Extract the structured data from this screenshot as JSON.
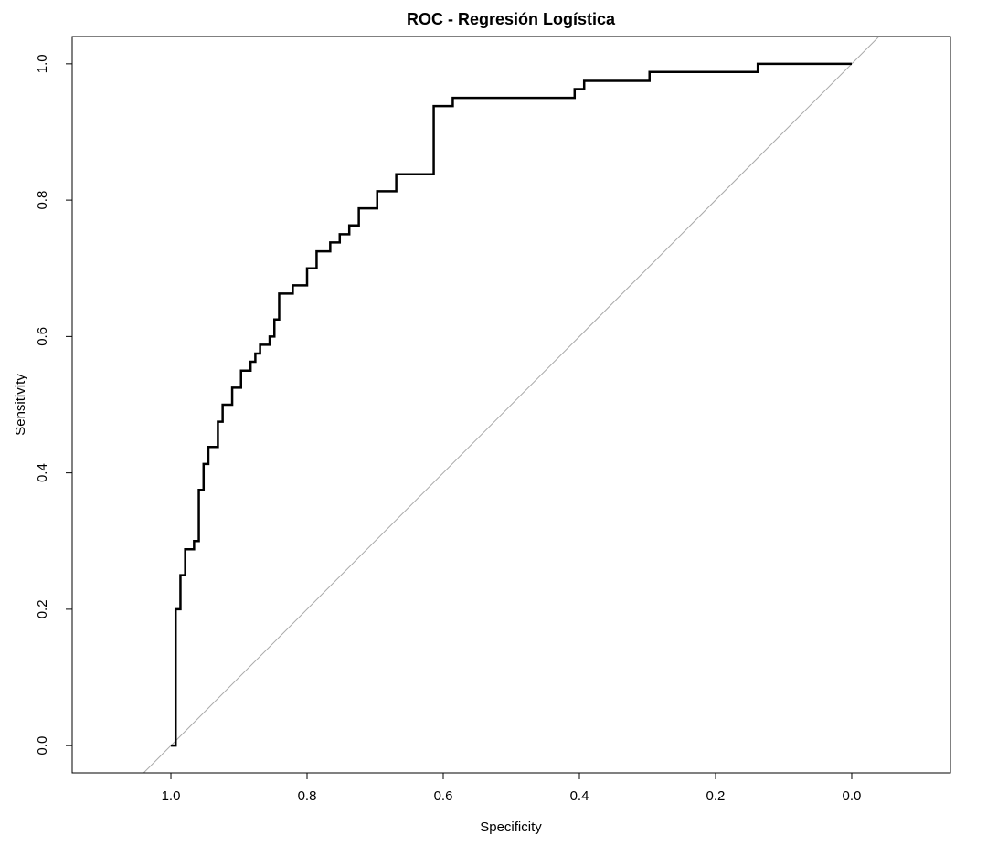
{
  "chart_data": {
    "type": "line",
    "title": "ROC - Regresión Logística",
    "xlabel": "Specificity",
    "ylabel": "Sensitivity",
    "x_reversed": true,
    "xlim": [
      1.145,
      -0.145
    ],
    "ylim": [
      -0.04,
      1.04
    ],
    "x_ticks": [
      "1.0",
      "0.8",
      "0.6",
      "0.4",
      "0.2",
      "0.0"
    ],
    "x_tick_values": [
      1.0,
      0.8,
      0.6,
      0.4,
      0.2,
      0.0
    ],
    "y_ticks": [
      "0.0",
      "0.2",
      "0.4",
      "0.6",
      "0.8",
      "1.0"
    ],
    "y_tick_values": [
      0.0,
      0.2,
      0.4,
      0.6,
      0.8,
      1.0
    ],
    "grid": false,
    "series": [
      {
        "line_color": "#000000",
        "step": true,
        "points": [
          [
            1.0,
            0.0
          ],
          [
            0.993,
            0.0
          ],
          [
            0.993,
            0.2
          ],
          [
            0.986,
            0.2
          ],
          [
            0.986,
            0.25
          ],
          [
            0.979,
            0.25
          ],
          [
            0.979,
            0.288
          ],
          [
            0.966,
            0.288
          ],
          [
            0.966,
            0.3
          ],
          [
            0.959,
            0.3
          ],
          [
            0.959,
            0.375
          ],
          [
            0.952,
            0.375
          ],
          [
            0.952,
            0.413
          ],
          [
            0.945,
            0.413
          ],
          [
            0.945,
            0.438
          ],
          [
            0.931,
            0.438
          ],
          [
            0.931,
            0.475
          ],
          [
            0.924,
            0.475
          ],
          [
            0.924,
            0.5
          ],
          [
            0.91,
            0.5
          ],
          [
            0.91,
            0.525
          ],
          [
            0.897,
            0.525
          ],
          [
            0.897,
            0.55
          ],
          [
            0.883,
            0.55
          ],
          [
            0.883,
            0.563
          ],
          [
            0.876,
            0.563
          ],
          [
            0.876,
            0.575
          ],
          [
            0.869,
            0.575
          ],
          [
            0.869,
            0.588
          ],
          [
            0.855,
            0.588
          ],
          [
            0.855,
            0.6
          ],
          [
            0.848,
            0.6
          ],
          [
            0.848,
            0.625
          ],
          [
            0.841,
            0.625
          ],
          [
            0.841,
            0.663
          ],
          [
            0.821,
            0.663
          ],
          [
            0.821,
            0.675
          ],
          [
            0.8,
            0.675
          ],
          [
            0.8,
            0.7
          ],
          [
            0.786,
            0.7
          ],
          [
            0.786,
            0.725
          ],
          [
            0.766,
            0.725
          ],
          [
            0.766,
            0.738
          ],
          [
            0.752,
            0.738
          ],
          [
            0.752,
            0.75
          ],
          [
            0.738,
            0.75
          ],
          [
            0.738,
            0.763
          ],
          [
            0.724,
            0.763
          ],
          [
            0.724,
            0.788
          ],
          [
            0.697,
            0.788
          ],
          [
            0.697,
            0.813
          ],
          [
            0.669,
            0.813
          ],
          [
            0.669,
            0.838
          ],
          [
            0.614,
            0.838
          ],
          [
            0.614,
            0.938
          ],
          [
            0.586,
            0.938
          ],
          [
            0.586,
            0.95
          ],
          [
            0.407,
            0.95
          ],
          [
            0.407,
            0.963
          ],
          [
            0.393,
            0.963
          ],
          [
            0.393,
            0.975
          ],
          [
            0.297,
            0.975
          ],
          [
            0.297,
            0.988
          ],
          [
            0.138,
            0.988
          ],
          [
            0.138,
            1.0
          ],
          [
            0.0,
            1.0
          ]
        ]
      },
      {
        "name": "reference",
        "line_color": "#a9a9a9",
        "points": [
          [
            1.145,
            -0.145
          ],
          [
            -0.04,
            1.04
          ]
        ]
      }
    ]
  }
}
